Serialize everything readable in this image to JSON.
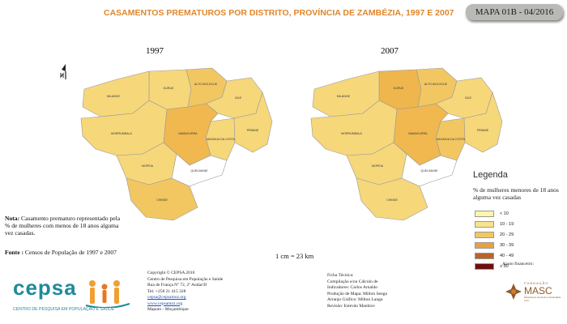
{
  "title": "CASAMENTOS PREMATUROS POR DISTRITO, PROVÍNCIA DE ZAMBÉZIA, 1997 E 2007",
  "map_code": "MAPA 01B - 04/2016",
  "map_1997": {
    "year": "1997",
    "districts": [
      {
        "label": "GURUE",
        "color": "#f6d77a"
      },
      {
        "label": "ALTO MOLOCUE",
        "color": "#f2c762"
      },
      {
        "label": "GILE",
        "color": "#f6d77a"
      },
      {
        "label": "PEBANE",
        "color": "#f6d77a"
      },
      {
        "label": "MAGANJA DA COSTA",
        "color": "#f6d77a"
      },
      {
        "label": "MILANGE",
        "color": "#f6d77a"
      },
      {
        "label": "MORRUMBALA",
        "color": "#f6d77a"
      },
      {
        "label": "MOPEIA",
        "color": "#f6d77a"
      },
      {
        "label": "CHINDE",
        "color": "#f2c762"
      },
      {
        "label": "NAMACURRA",
        "color": "#f0b84e"
      },
      {
        "label": "QUELIMANE",
        "color": "#ffffff"
      }
    ]
  },
  "map_2007": {
    "year": "2007",
    "districts": [
      {
        "label": "GURUE",
        "color": "#efb64e"
      },
      {
        "label": "ALTO MOLOCUE",
        "color": "#f2c762"
      },
      {
        "label": "GILE",
        "color": "#f6d77a"
      },
      {
        "label": "PEBANE",
        "color": "#f6d77a"
      },
      {
        "label": "MAGANJA DA COSTA",
        "color": "#f2c762"
      },
      {
        "label": "MILANGE",
        "color": "#f6d77a"
      },
      {
        "label": "MORRUMBALA",
        "color": "#f6d77a"
      },
      {
        "label": "MOPEIA",
        "color": "#f6d77a"
      },
      {
        "label": "CHINDE",
        "color": "#f6d77a"
      },
      {
        "label": "NAMACURRA",
        "color": "#f0b84e"
      },
      {
        "label": "QUELIMANE",
        "color": "#ffffff"
      }
    ]
  },
  "legend": {
    "title": "Legenda",
    "subtitle": "% de mulheres menores de 18 anos alguma vez casadas",
    "classes": [
      {
        "label": "< 10",
        "color": "#fdf6a8"
      },
      {
        "label": "10 - 19",
        "color": "#f9e38c"
      },
      {
        "label": "20 - 29",
        "color": "#f2c762"
      },
      {
        "label": "30 - 39",
        "color": "#e9a13f"
      },
      {
        "label": "40 - 49",
        "color": "#b8652a"
      },
      {
        "label": "≥ 50",
        "color": "#6e0f0f"
      }
    ]
  },
  "note": {
    "label": "Nota:",
    "text": "Casamento prematuro representado pela % de mulheres com menos de 18 anos alguma vez casadas."
  },
  "fonte": {
    "label": "Fonte :",
    "text": "Censos de População de 1997 e 2007"
  },
  "scale": "1 cm = 23 km",
  "logo": {
    "name": "cepsa",
    "subtitle": "CENTRO DE PESQUISA EM POPULAÇÃO E SAÚDE"
  },
  "copyright": {
    "line1": "Copyright © CEPSA 2016",
    "line2": "Centro de Pesquisa em População e Saúde",
    "line3": "Rua de França Nº 72, 2º Andar/D",
    "line4": "Tel: +258 21 415 328",
    "email": "cepsa@cepsamoz.org",
    "web": "www.cepsamoz.org",
    "city": "Maputo - Moçambique"
  },
  "technical": {
    "line1": "Ficha Técnica:",
    "line2": "Compilação e/ou Cálculo de",
    "line3": "Indicadores: Carlos Arnaldo",
    "line4": "Produção de Mapa: Milton Sengo",
    "line5": "Arranjo Gráfico: Milton Langa",
    "line6": "Revisão: Estevão Manhice"
  },
  "support": {
    "label": "Apoio financeiro:",
    "org_small": "FUNDAÇÃO",
    "org_name": "MASC",
    "org_sub": "Mecanismo de Apoio à Sociedade Civil"
  }
}
